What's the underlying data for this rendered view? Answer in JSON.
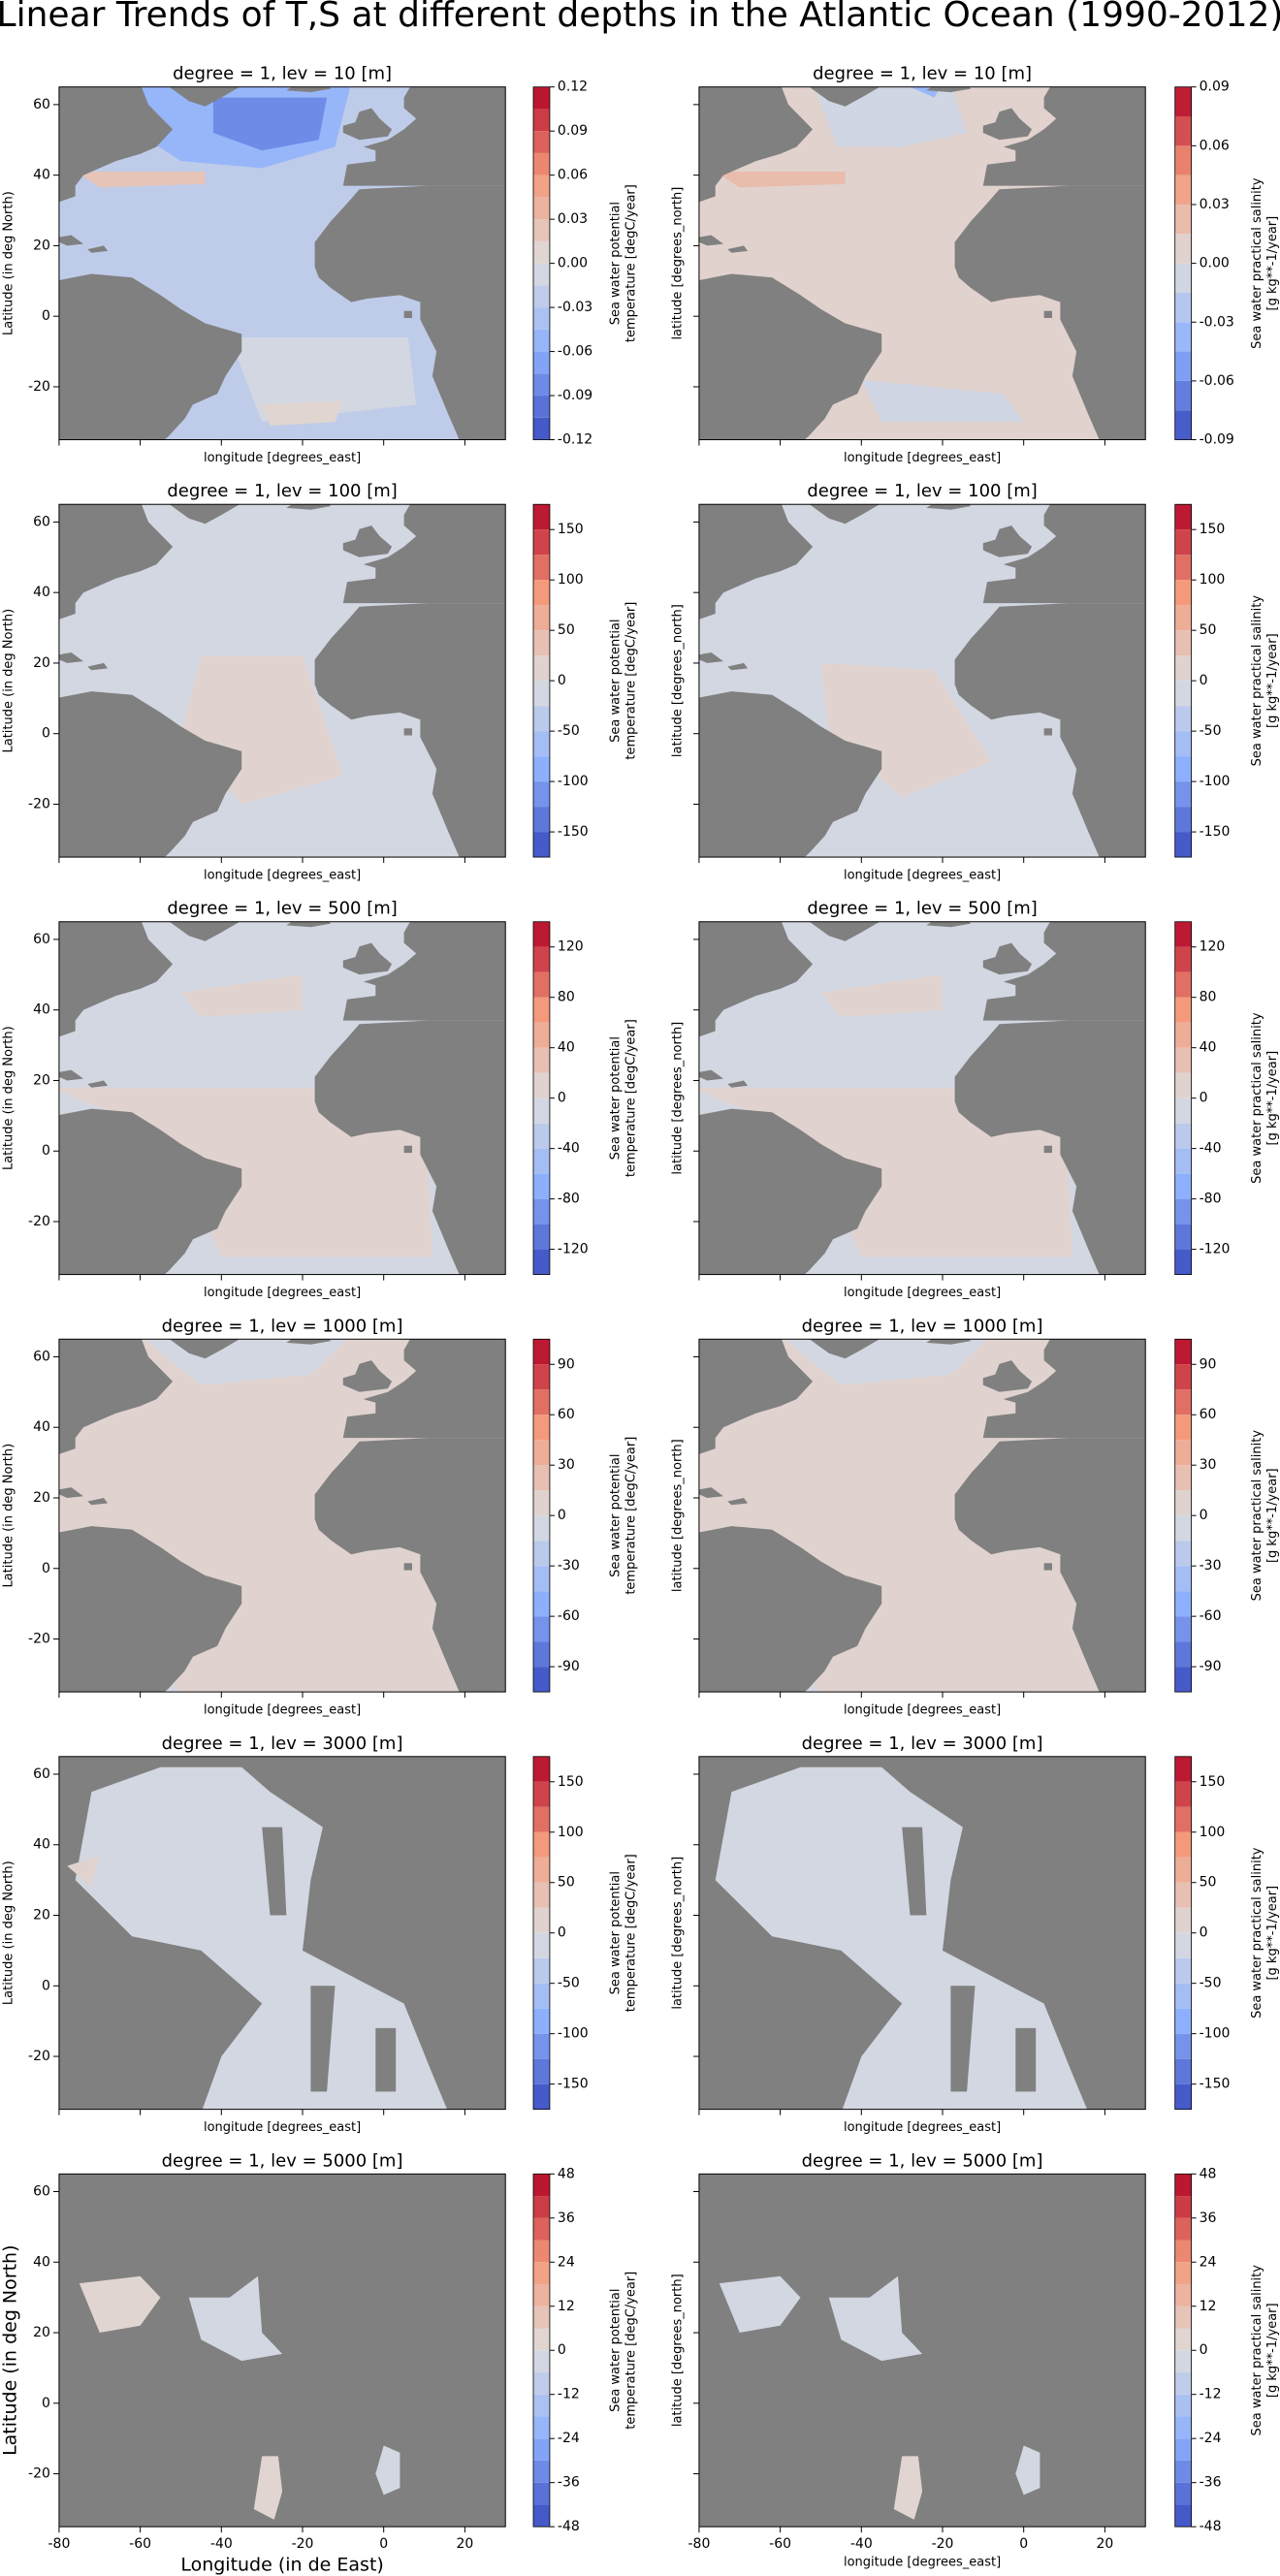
{
  "title": "Linear Trends of T,S at different depths in the Atlantic Ocean (1990-2012)",
  "chart_data": [
    {
      "type": "contour",
      "title": "degree = 1, lev = 10 [m]",
      "xlabel": "longitude [degrees_east]",
      "ylabel": "Latitude (in deg North)",
      "colorbar_label": [
        "Sea water potential",
        "temperature [degC/year]"
      ],
      "cmap": "coolwarm",
      "xlim": [
        -80,
        30
      ],
      "ylim": [
        -35,
        65
      ],
      "xticks": [
        -80,
        -60,
        -40,
        -20,
        0,
        20
      ],
      "yticks": [
        -20,
        0,
        20,
        40,
        60
      ],
      "levels": [
        -0.12,
        -0.105,
        -0.09,
        -0.075,
        -0.06,
        -0.045,
        -0.03,
        -0.015,
        0,
        0.015,
        0.03,
        0.045,
        0.06,
        0.075,
        0.09,
        0.105,
        0.12
      ],
      "cticks": [
        -0.12,
        -0.09,
        -0.06,
        -0.03,
        {
          "value": 0,
          "label": "0.00"
        },
        0.03,
        0.06,
        0.09,
        0.12
      ]
    },
    {
      "type": "contour",
      "title": "degree = 1, lev = 10 [m]",
      "xlabel": "longitude [degrees_east]",
      "ylabel": "latitude [degrees_north]",
      "colorbar_label": [
        "Sea water practical salinity",
        "[g kg**-1/year]"
      ],
      "cmap": "coolwarm",
      "xlim": [
        -80,
        30
      ],
      "ylim": [
        -35,
        65
      ],
      "xticks": [
        -80,
        -60,
        -40,
        -20,
        0,
        20
      ],
      "yticks": [
        -20,
        0,
        20,
        40,
        60
      ],
      "levels": [
        -0.09,
        -0.075,
        -0.06,
        -0.045,
        -0.03,
        -0.015,
        0,
        0.015,
        0.03,
        0.045,
        0.06,
        0.075,
        0.09
      ],
      "cticks": [
        -0.09,
        -0.06,
        -0.03,
        {
          "value": 0,
          "label": "0.00"
        },
        0.03,
        0.06,
        0.09
      ]
    },
    {
      "type": "contour",
      "title": "degree = 1, lev = 100 [m]",
      "xlabel": "longitude [degrees_east]",
      "ylabel": "Latitude (in deg North)",
      "colorbar_label": [
        "Sea water potential",
        "temperature [degC/year]"
      ],
      "cmap": "coolwarm",
      "xlim": [
        -80,
        30
      ],
      "ylim": [
        -35,
        65
      ],
      "xticks": [
        -80,
        -60,
        -40,
        -20,
        0,
        20
      ],
      "yticks": [
        -20,
        0,
        20,
        40,
        60
      ],
      "levels": [
        -175,
        -150,
        -125,
        -100,
        -75,
        -50,
        -25,
        0,
        25,
        50,
        75,
        100,
        125,
        150,
        175
      ],
      "cticks": [
        -150,
        -100,
        -50,
        0,
        50,
        100,
        150
      ]
    },
    {
      "type": "contour",
      "title": "degree = 1, lev = 100 [m]",
      "xlabel": "longitude [degrees_east]",
      "ylabel": "latitude [degrees_north]",
      "colorbar_label": [
        "Sea water practical salinity",
        "[g kg**-1/year]"
      ],
      "cmap": "coolwarm",
      "xlim": [
        -80,
        30
      ],
      "ylim": [
        -35,
        65
      ],
      "xticks": [
        -80,
        -60,
        -40,
        -20,
        0,
        20
      ],
      "yticks": [
        -20,
        0,
        20,
        40,
        60
      ],
      "levels": [
        -175,
        -150,
        -125,
        -100,
        -75,
        -50,
        -25,
        0,
        25,
        50,
        75,
        100,
        125,
        150,
        175
      ],
      "cticks": [
        -150,
        -100,
        -50,
        0,
        50,
        100,
        150
      ]
    },
    {
      "type": "contour",
      "title": "degree = 1, lev = 500 [m]",
      "xlabel": "longitude [degrees_east]",
      "ylabel": "Latitude (in deg North)",
      "colorbar_label": [
        "Sea water potential",
        "temperature [degC/year]"
      ],
      "cmap": "coolwarm",
      "xlim": [
        -80,
        30
      ],
      "ylim": [
        -35,
        65
      ],
      "xticks": [
        -80,
        -60,
        -40,
        -20,
        0,
        20
      ],
      "yticks": [
        -20,
        0,
        20,
        40,
        60
      ],
      "levels": [
        -140,
        -120,
        -100,
        -80,
        -60,
        -40,
        -20,
        0,
        20,
        40,
        60,
        80,
        100,
        120,
        140
      ],
      "cticks": [
        -120,
        -80,
        -40,
        0,
        40,
        80,
        120
      ]
    },
    {
      "type": "contour",
      "title": "degree = 1, lev = 500 [m]",
      "xlabel": "longitude [degrees_east]",
      "ylabel": "latitude [degrees_north]",
      "colorbar_label": [
        "Sea water practical salinity",
        "[g kg**-1/year]"
      ],
      "cmap": "coolwarm",
      "xlim": [
        -80,
        30
      ],
      "ylim": [
        -35,
        65
      ],
      "xticks": [
        -80,
        -60,
        -40,
        -20,
        0,
        20
      ],
      "yticks": [
        -20,
        0,
        20,
        40,
        60
      ],
      "levels": [
        -140,
        -120,
        -100,
        -80,
        -60,
        -40,
        -20,
        0,
        20,
        40,
        60,
        80,
        100,
        120,
        140
      ],
      "cticks": [
        -120,
        -80,
        -40,
        0,
        40,
        80,
        120
      ]
    },
    {
      "type": "contour",
      "title": "degree = 1, lev = 1000 [m]",
      "xlabel": "longitude [degrees_east]",
      "ylabel": "Latitude (in deg North)",
      "colorbar_label": [
        "Sea water potential",
        "temperature [degC/year]"
      ],
      "cmap": "coolwarm",
      "xlim": [
        -80,
        30
      ],
      "ylim": [
        -35,
        65
      ],
      "xticks": [
        -80,
        -60,
        -40,
        -20,
        0,
        20
      ],
      "yticks": [
        -20,
        0,
        20,
        40,
        60
      ],
      "levels": [
        -105,
        -90,
        -75,
        -60,
        -45,
        -30,
        -15,
        0,
        15,
        30,
        45,
        60,
        75,
        90,
        105
      ],
      "cticks": [
        -90,
        -60,
        -30,
        0,
        30,
        60,
        90
      ]
    },
    {
      "type": "contour",
      "title": "degree = 1, lev = 1000 [m]",
      "xlabel": "longitude [degrees_east]",
      "ylabel": "latitude [degrees_north]",
      "colorbar_label": [
        "Sea water practical salinity",
        "[g kg**-1/year]"
      ],
      "cmap": "coolwarm",
      "xlim": [
        -80,
        30
      ],
      "ylim": [
        -35,
        65
      ],
      "xticks": [
        -80,
        -60,
        -40,
        -20,
        0,
        20
      ],
      "yticks": [
        -20,
        0,
        20,
        40,
        60
      ],
      "levels": [
        -105,
        -90,
        -75,
        -60,
        -45,
        -30,
        -15,
        0,
        15,
        30,
        45,
        60,
        75,
        90,
        105
      ],
      "cticks": [
        -90,
        -60,
        -30,
        0,
        30,
        60,
        90
      ]
    },
    {
      "type": "contour",
      "title": "degree = 1, lev = 3000 [m]",
      "xlabel": "longitude [degrees_east]",
      "ylabel": "Latitude (in deg North)",
      "colorbar_label": [
        "Sea water potential",
        "temperature [degC/year]"
      ],
      "cmap": "coolwarm",
      "xlim": [
        -80,
        30
      ],
      "ylim": [
        -35,
        65
      ],
      "xticks": [
        -80,
        -60,
        -40,
        -20,
        0,
        20
      ],
      "yticks": [
        -20,
        0,
        20,
        40,
        60
      ],
      "levels": [
        -175,
        -150,
        -125,
        -100,
        -75,
        -50,
        -25,
        0,
        25,
        50,
        75,
        100,
        125,
        150,
        175
      ],
      "cticks": [
        -150,
        -100,
        -50,
        0,
        50,
        100,
        150
      ]
    },
    {
      "type": "contour",
      "title": "degree = 1, lev = 3000 [m]",
      "xlabel": "longitude [degrees_east]",
      "ylabel": "latitude [degrees_north]",
      "colorbar_label": [
        "Sea water practical salinity",
        "[g kg**-1/year]"
      ],
      "cmap": "coolwarm",
      "xlim": [
        -80,
        30
      ],
      "ylim": [
        -35,
        65
      ],
      "xticks": [
        -80,
        -60,
        -40,
        -20,
        0,
        20
      ],
      "yticks": [
        -20,
        0,
        20,
        40,
        60
      ],
      "levels": [
        -175,
        -150,
        -125,
        -100,
        -75,
        -50,
        -25,
        0,
        25,
        50,
        75,
        100,
        125,
        150,
        175
      ],
      "cticks": [
        -150,
        -100,
        -50,
        0,
        50,
        100,
        150
      ]
    },
    {
      "type": "contour",
      "title": "degree = 1, lev = 5000 [m]",
      "xlabel": "Longitude (in de East)",
      "ylabel": "Latitude (in deg North)",
      "colorbar_label": [
        "Sea water potential",
        "temperature [degC/year]"
      ],
      "cmap": "coolwarm",
      "xlim": [
        -80,
        30
      ],
      "ylim": [
        -35,
        65
      ],
      "xticks": [
        -80,
        -60,
        -40,
        -20,
        0,
        20
      ],
      "yticks": [
        -20,
        0,
        20,
        40,
        60
      ],
      "levels": [
        -48,
        -42,
        -36,
        -30,
        -24,
        -18,
        -12,
        -6,
        0,
        6,
        12,
        18,
        24,
        30,
        36,
        42,
        48
      ],
      "cticks": [
        -48,
        -36,
        -24,
        -12,
        0,
        12,
        24,
        36,
        48
      ]
    },
    {
      "type": "contour",
      "title": "degree = 1, lev = 5000 [m]",
      "xlabel": "longitude [degrees_east]",
      "ylabel": "latitude [degrees_north]",
      "colorbar_label": [
        "Sea water practical salinity",
        "[g kg**-1/year]"
      ],
      "cmap": "coolwarm",
      "xlim": [
        -80,
        30
      ],
      "ylim": [
        -35,
        65
      ],
      "xticks": [
        -80,
        -60,
        -40,
        -20,
        0,
        20
      ],
      "yticks": [
        -20,
        0,
        20,
        40,
        60
      ],
      "levels": [
        -48,
        -42,
        -36,
        -30,
        -24,
        -18,
        -12,
        -6,
        0,
        6,
        12,
        18,
        24,
        30,
        36,
        42,
        48
      ],
      "cticks": [
        -48,
        -36,
        -24,
        -12,
        0,
        12,
        24,
        36,
        48
      ]
    }
  ]
}
